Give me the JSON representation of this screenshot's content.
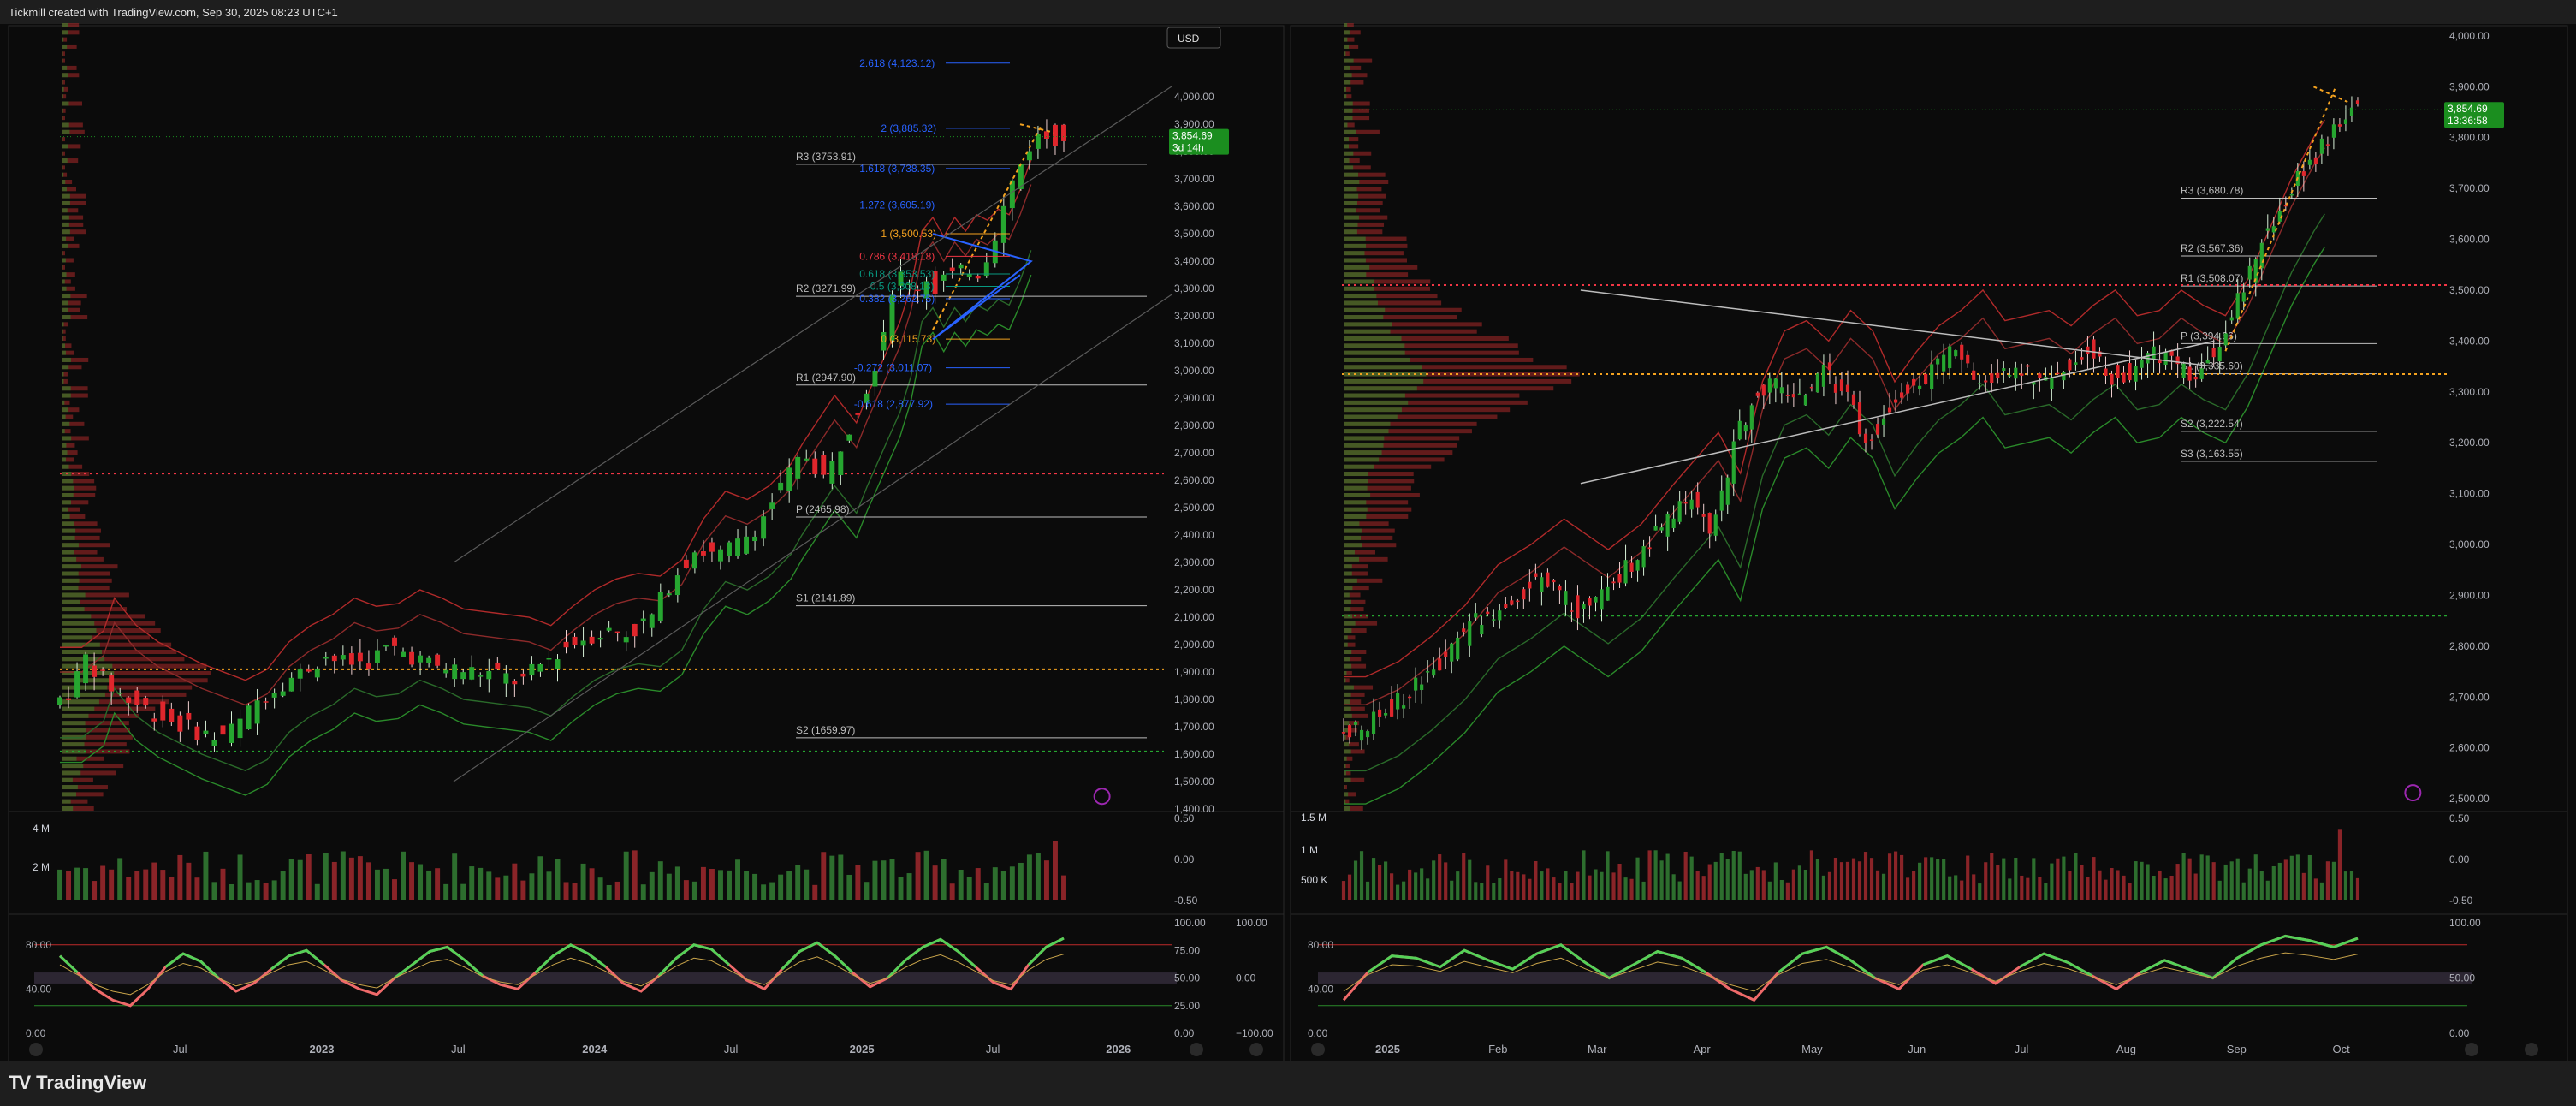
{
  "header": {
    "caption": "Tickmill created with TradingView.com, Sep 30, 2025 08:23 UTC+1"
  },
  "footer": {
    "brand": "TradingView",
    "brand_logo": "TV"
  },
  "colors": {
    "bg": "#0b0b0b",
    "frame": "#1e1e1e",
    "up": "#26a630",
    "down": "#e0262c",
    "label": "#aeb0b8",
    "fib_blue": "#2962ff",
    "fib_orange": "#f4a21f",
    "fib_red": "#f23645",
    "fib_green": "#089981",
    "price_tag": "#1b8e1f",
    "volprofile": "#ab2a2a",
    "wizard": "#9c27b0"
  },
  "chart_data": [
    {
      "type": "candlestick",
      "timeframe": "weekly",
      "currency_button": "USD",
      "current_price": "3,854.69",
      "countdown": "3d 14h",
      "price_axis": [
        "4,000.00",
        "3,900.00",
        "3,800.00",
        "3,700.00",
        "3,600.00",
        "3,500.00",
        "3,400.00",
        "3,300.00",
        "3,200.00",
        "3,100.00",
        "3,000.00",
        "2,900.00",
        "2,800.00",
        "2,700.00",
        "2,600.00",
        "2,500.00",
        "2,400.00",
        "2,300.00",
        "2,200.00",
        "2,100.00",
        "2,000.00",
        "1,900.00",
        "1,800.00",
        "1,700.00",
        "1,600.00",
        "1,500.00",
        "1,400.00"
      ],
      "price_axis_values": [
        4000,
        3900,
        3800,
        3700,
        3600,
        3500,
        3400,
        3300,
        3200,
        3100,
        3000,
        2900,
        2800,
        2700,
        2600,
        2500,
        2400,
        2300,
        2200,
        2100,
        2000,
        1900,
        1800,
        1700,
        1600,
        1500,
        1400
      ],
      "ylim": [
        1400,
        4260
      ],
      "time_axis": [
        "Jul",
        "2023",
        "Jul",
        "2024",
        "Jul",
        "2025",
        "Jul",
        "2026"
      ],
      "time_axis_frac": [
        0.11,
        0.24,
        0.365,
        0.49,
        0.615,
        0.735,
        0.855,
        0.97
      ],
      "pivots": [
        {
          "label": "R3 (3753.91)",
          "value": 3753.91
        },
        {
          "label": "R2 (3271.99)",
          "value": 3271.99
        },
        {
          "label": "R1 (2947.90)",
          "value": 2947.9
        },
        {
          "label": "P (2465.98)",
          "value": 2465.98
        },
        {
          "label": "S1 (2141.89)",
          "value": 2141.89
        },
        {
          "label": "S2 (1659.97)",
          "value": 1659.97
        }
      ],
      "fib_levels": [
        {
          "label": "2.618 (4,123.12)",
          "value": 4123.12,
          "color": "#2962ff"
        },
        {
          "label": "2 (3,885.32)",
          "value": 3885.32,
          "color": "#2962ff"
        },
        {
          "label": "1.618 (3,738.35)",
          "value": 3738.35,
          "color": "#2962ff"
        },
        {
          "label": "1.272 (3,605.19)",
          "value": 3605.19,
          "color": "#2962ff"
        },
        {
          "label": "1 (3,500.53)",
          "value": 3500.53,
          "color": "#f4a21f"
        },
        {
          "label": "0.786 (3,418.18)",
          "value": 3418.18,
          "color": "#f23645"
        },
        {
          "label": "0.618 (3,353.53)",
          "value": 3353.53,
          "color": "#089981"
        },
        {
          "label": "0.5 (3,308.13)",
          "value": 3308.13,
          "color": "#089981"
        },
        {
          "label": "0.382 (3,262.75)",
          "value": 3262.75,
          "color": "#2962ff"
        },
        {
          "label": "0 (3,115.73)",
          "value": 3115.73,
          "color": "#f4a21f"
        },
        {
          "label": "-0.272 (3,011.07)",
          "value": 3011.07,
          "color": "#2962ff"
        },
        {
          "label": "-0.618 (2,877.92)",
          "value": 2877.92,
          "color": "#2962ff"
        }
      ],
      "price_series": [
        [
          0,
          1780
        ],
        [
          0.02,
          1840
        ],
        [
          0.03,
          1960
        ],
        [
          0.05,
          1860
        ],
        [
          0.07,
          1800
        ],
        [
          0.09,
          1760
        ],
        [
          0.11,
          1720
        ],
        [
          0.13,
          1690
        ],
        [
          0.15,
          1660
        ],
        [
          0.17,
          1700
        ],
        [
          0.19,
          1800
        ],
        [
          0.21,
          1860
        ],
        [
          0.23,
          1900
        ],
        [
          0.25,
          1960
        ],
        [
          0.27,
          1930
        ],
        [
          0.29,
          1940
        ],
        [
          0.31,
          1990
        ],
        [
          0.33,
          1960
        ],
        [
          0.35,
          1920
        ],
        [
          0.37,
          1910
        ],
        [
          0.39,
          1900
        ],
        [
          0.41,
          1890
        ],
        [
          0.43,
          1860
        ],
        [
          0.45,
          1930
        ],
        [
          0.47,
          1990
        ],
        [
          0.49,
          2030
        ],
        [
          0.51,
          2050
        ],
        [
          0.53,
          2040
        ],
        [
          0.55,
          2100
        ],
        [
          0.57,
          2250
        ],
        [
          0.59,
          2350
        ],
        [
          0.61,
          2320
        ],
        [
          0.63,
          2370
        ],
        [
          0.65,
          2450
        ],
        [
          0.66,
          2520
        ],
        [
          0.67,
          2580
        ],
        [
          0.68,
          2640
        ],
        [
          0.69,
          2700
        ],
        [
          0.7,
          2650
        ],
        [
          0.71,
          2600
        ],
        [
          0.72,
          2700
        ],
        [
          0.73,
          2790
        ],
        [
          0.74,
          2880
        ],
        [
          0.75,
          2970
        ],
        [
          0.76,
          3100
        ],
        [
          0.77,
          3300
        ],
        [
          0.78,
          3350
        ],
        [
          0.79,
          3280
        ],
        [
          0.8,
          3350
        ],
        [
          0.81,
          3300
        ],
        [
          0.82,
          3360
        ],
        [
          0.83,
          3340
        ],
        [
          0.84,
          3380
        ],
        [
          0.85,
          3360
        ],
        [
          0.86,
          3450
        ],
        [
          0.87,
          3560
        ],
        [
          0.88,
          3680
        ],
        [
          0.9,
          3854.69
        ]
      ],
      "volume_axis": [
        "4 M",
        "2 M"
      ],
      "volume_axis_values": [
        4000000,
        2000000
      ],
      "osc_axis": [
        "0.50",
        "0.00",
        "-0.50"
      ],
      "rsi_axis_left": [
        "80.00",
        "40.00",
        "0.00"
      ],
      "rsi_axis_right": [
        "100.00",
        "75.00",
        "50.00",
        "25.00",
        "0.00"
      ],
      "rsi_axis_right2": [
        "100.00",
        "0.00",
        "−100.00"
      ],
      "rsi_values": [
        70,
        55,
        40,
        30,
        25,
        40,
        60,
        72,
        65,
        50,
        38,
        45,
        58,
        70,
        75,
        62,
        48,
        40,
        35,
        50,
        62,
        74,
        78,
        66,
        52,
        44,
        40,
        55,
        70,
        80,
        72,
        60,
        45,
        38,
        52,
        68,
        80,
        76,
        62,
        48,
        40,
        58,
        74,
        82,
        70,
        55,
        42,
        50,
        66,
        78,
        85,
        74,
        60,
        46,
        40,
        62,
        78,
        86
      ]
    },
    {
      "type": "candlestick",
      "timeframe": "daily",
      "current_price": "3,854.69",
      "countdown": "13:36:58",
      "price_axis": [
        "4,000.00",
        "3,900.00",
        "3,800.00",
        "3,700.00",
        "3,600.00",
        "3,500.00",
        "3,400.00",
        "3,300.00",
        "3,200.00",
        "3,100.00",
        "3,000.00",
        "2,900.00",
        "2,800.00",
        "2,700.00",
        "2,600.00",
        "2,500.00"
      ],
      "price_axis_values": [
        4000,
        3900,
        3800,
        3700,
        3600,
        3500,
        3400,
        3300,
        3200,
        3100,
        3000,
        2900,
        2800,
        2700,
        2600,
        2500
      ],
      "ylim": [
        2480,
        4020
      ],
      "time_axis": [
        "2025",
        "Feb",
        "Mar",
        "Apr",
        "May",
        "Jun",
        "Jul",
        "Aug",
        "Sep",
        "Oct"
      ],
      "time_axis_frac": [
        0.04,
        0.14,
        0.23,
        0.325,
        0.425,
        0.52,
        0.615,
        0.71,
        0.81,
        0.905
      ],
      "pivots": [
        {
          "label": "R3 (3,680.78)",
          "value": 3680.78
        },
        {
          "label": "R2 (3,567.36)",
          "value": 3567.36
        },
        {
          "label": "R1 (3,508.07)",
          "value": 3508.07
        },
        {
          "label": "P (3,394.96)",
          "value": 3394.96
        },
        {
          "label": "S1 (3,335.60)",
          "value": 3335.6
        },
        {
          "label": "S2 (3,222.54)",
          "value": 3222.54
        },
        {
          "label": "S3 (3,163.55)",
          "value": 3163.55
        }
      ],
      "price_series": [
        [
          0,
          2620
        ],
        [
          0.03,
          2650
        ],
        [
          0.06,
          2700
        ],
        [
          0.09,
          2760
        ],
        [
          0.12,
          2840
        ],
        [
          0.15,
          2880
        ],
        [
          0.18,
          2930
        ],
        [
          0.2,
          2900
        ],
        [
          0.22,
          2870
        ],
        [
          0.25,
          2920
        ],
        [
          0.28,
          3000
        ],
        [
          0.3,
          3050
        ],
        [
          0.32,
          3100
        ],
        [
          0.34,
          3020
        ],
        [
          0.36,
          3200
        ],
        [
          0.38,
          3300
        ],
        [
          0.4,
          3320
        ],
        [
          0.42,
          3280
        ],
        [
          0.44,
          3340
        ],
        [
          0.46,
          3300
        ],
        [
          0.48,
          3200
        ],
        [
          0.5,
          3260
        ],
        [
          0.52,
          3310
        ],
        [
          0.54,
          3340
        ],
        [
          0.56,
          3380
        ],
        [
          0.58,
          3320
        ],
        [
          0.6,
          3330
        ],
        [
          0.62,
          3340
        ],
        [
          0.64,
          3310
        ],
        [
          0.66,
          3350
        ],
        [
          0.68,
          3380
        ],
        [
          0.7,
          3330
        ],
        [
          0.72,
          3340
        ],
        [
          0.74,
          3380
        ],
        [
          0.76,
          3350
        ],
        [
          0.78,
          3330
        ],
        [
          0.8,
          3400
        ],
        [
          0.82,
          3500
        ],
        [
          0.84,
          3600
        ],
        [
          0.86,
          3680
        ],
        [
          0.88,
          3750
        ],
        [
          0.9,
          3800
        ],
        [
          0.92,
          3854.69
        ]
      ],
      "volume_axis": [
        "1.5 M",
        "1 M",
        "500 K"
      ],
      "volume_axis_values": [
        1500000,
        1000000,
        500000
      ],
      "osc_axis": [
        "0.50",
        "0.00",
        "-0.50"
      ],
      "rsi_axis_left": [
        "80.00",
        "40.00",
        "0.00"
      ],
      "rsi_axis_right": [
        "100.00",
        "50.00",
        "0.00"
      ],
      "rsi_values": [
        30,
        55,
        70,
        68,
        60,
        75,
        66,
        58,
        72,
        80,
        64,
        50,
        62,
        74,
        68,
        55,
        40,
        30,
        55,
        72,
        78,
        66,
        50,
        40,
        62,
        70,
        58,
        45,
        60,
        72,
        64,
        52,
        40,
        55,
        66,
        58,
        50,
        68,
        80,
        88,
        84,
        78,
        86
      ]
    }
  ]
}
